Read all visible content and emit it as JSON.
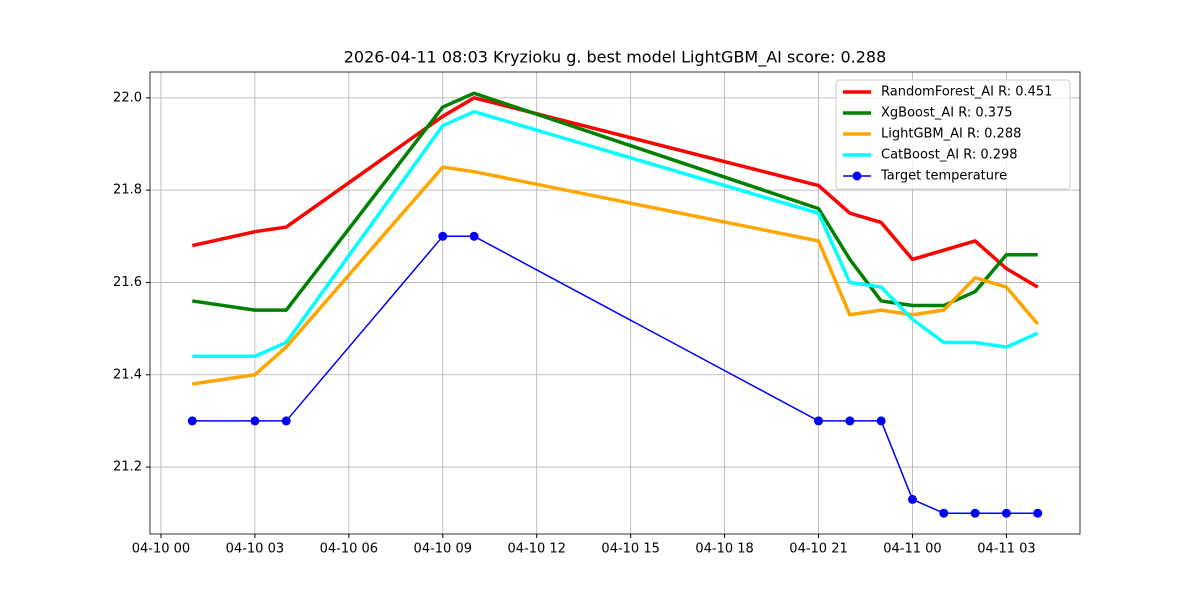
{
  "chart_data": {
    "type": "line",
    "title": "2026-04-11 08:03 Kryzioku g. best model LightGBM_AI score: 0.288",
    "x": [
      "04-10 01",
      "04-10 03",
      "04-10 04",
      "04-10 09",
      "04-10 10",
      "04-10 21",
      "04-10 22",
      "04-10 23",
      "04-11 00",
      "04-11 01",
      "04-11 02",
      "04-11 03",
      "04-11 04"
    ],
    "series": [
      {
        "name": "RandomForest_AI R: 0.451",
        "color": "#ff0000",
        "linewidth": 3.5,
        "values": [
          21.68,
          21.71,
          21.72,
          21.96,
          22.0,
          21.81,
          21.75,
          21.73,
          21.65,
          21.67,
          21.69,
          21.63,
          21.59
        ]
      },
      {
        "name": "XgBoost_AI R: 0.375",
        "color": "#008000",
        "linewidth": 3.5,
        "values": [
          21.56,
          21.54,
          21.54,
          21.98,
          22.01,
          21.76,
          21.65,
          21.56,
          21.55,
          21.55,
          21.58,
          21.66,
          21.66
        ]
      },
      {
        "name": "LightGBM_AI R: 0.288",
        "color": "#ffa500",
        "linewidth": 3.5,
        "values": [
          21.38,
          21.4,
          21.46,
          21.85,
          21.84,
          21.69,
          21.53,
          21.54,
          21.53,
          21.54,
          21.61,
          21.59,
          21.51
        ]
      },
      {
        "name": "CatBoost_AI R: 0.298",
        "color": "#00ffff",
        "linewidth": 3.5,
        "values": [
          21.44,
          21.44,
          21.47,
          21.94,
          21.97,
          21.75,
          21.6,
          21.59,
          21.52,
          21.47,
          21.47,
          21.46,
          21.49
        ]
      },
      {
        "name": "Target temperature",
        "color": "#0000ff",
        "linewidth": 1.5,
        "marker": "o",
        "values": [
          21.3,
          21.3,
          21.3,
          21.7,
          21.7,
          21.3,
          21.3,
          21.3,
          21.13,
          21.1,
          21.1,
          21.1,
          21.1
        ]
      }
    ],
    "xlim": [
      "04-09 23:39",
      "04-11 05:21"
    ],
    "xticks": [
      "04-10 00",
      "04-10 03",
      "04-10 06",
      "04-10 09",
      "04-10 12",
      "04-10 15",
      "04-10 18",
      "04-10 21",
      "04-11 00",
      "04-11 03"
    ],
    "ylim": [
      21.055,
      22.056
    ],
    "yticks": [
      21.2,
      21.4,
      21.6,
      21.8,
      {
        "value": 22,
        "label": "22.0"
      }
    ],
    "grid": true,
    "legend": "upper-right"
  }
}
